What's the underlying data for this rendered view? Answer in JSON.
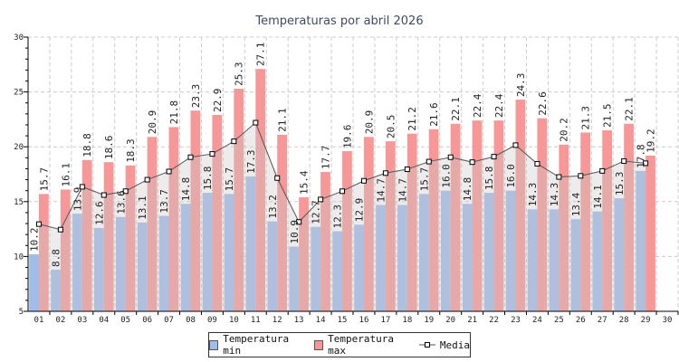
{
  "chart_data": {
    "type": "bar",
    "title": "Temperaturas por abril 2026",
    "categories": [
      "01",
      "02",
      "03",
      "04",
      "05",
      "06",
      "07",
      "08",
      "09",
      "10",
      "11",
      "12",
      "13",
      "14",
      "15",
      "16",
      "17",
      "18",
      "19",
      "20",
      "21",
      "22",
      "23",
      "24",
      "25",
      "26",
      "27",
      "28",
      "29",
      "30"
    ],
    "ylim": [
      5,
      30
    ],
    "yticks": [
      5,
      10,
      15,
      20,
      25,
      30
    ],
    "grid": true,
    "legend_position": "bottom",
    "series": [
      {
        "name": "Temperatura min",
        "type": "bar",
        "color": "#a0bce8",
        "values": [
          10.2,
          8.8,
          13.9,
          12.6,
          13.6,
          13.1,
          13.7,
          14.8,
          15.8,
          15.7,
          17.3,
          13.2,
          10.9,
          12.7,
          12.3,
          12.9,
          14.7,
          14.7,
          15.7,
          16.0,
          14.8,
          15.8,
          16.0,
          14.3,
          14.3,
          13.4,
          14.1,
          15.3,
          17.8,
          null
        ]
      },
      {
        "name": "Temperatura max",
        "type": "bar",
        "color": "#f79797",
        "values": [
          15.7,
          16.1,
          18.8,
          18.6,
          18.3,
          20.9,
          21.8,
          23.3,
          22.9,
          25.3,
          27.1,
          21.1,
          15.4,
          17.7,
          19.6,
          20.9,
          20.5,
          21.2,
          21.6,
          22.1,
          22.4,
          22.4,
          24.3,
          22.6,
          20.2,
          21.3,
          21.5,
          22.1,
          19.2,
          null
        ]
      },
      {
        "name": "Media",
        "type": "line-area",
        "color": "#555555",
        "values": [
          12.95,
          12.45,
          16.35,
          15.6,
          15.95,
          17.0,
          17.75,
          19.05,
          19.35,
          20.5,
          22.2,
          17.15,
          13.15,
          15.2,
          15.95,
          16.9,
          17.6,
          17.95,
          18.65,
          19.05,
          18.6,
          19.1,
          20.15,
          18.45,
          17.25,
          17.35,
          17.8,
          18.7,
          18.5,
          null
        ]
      }
    ]
  }
}
